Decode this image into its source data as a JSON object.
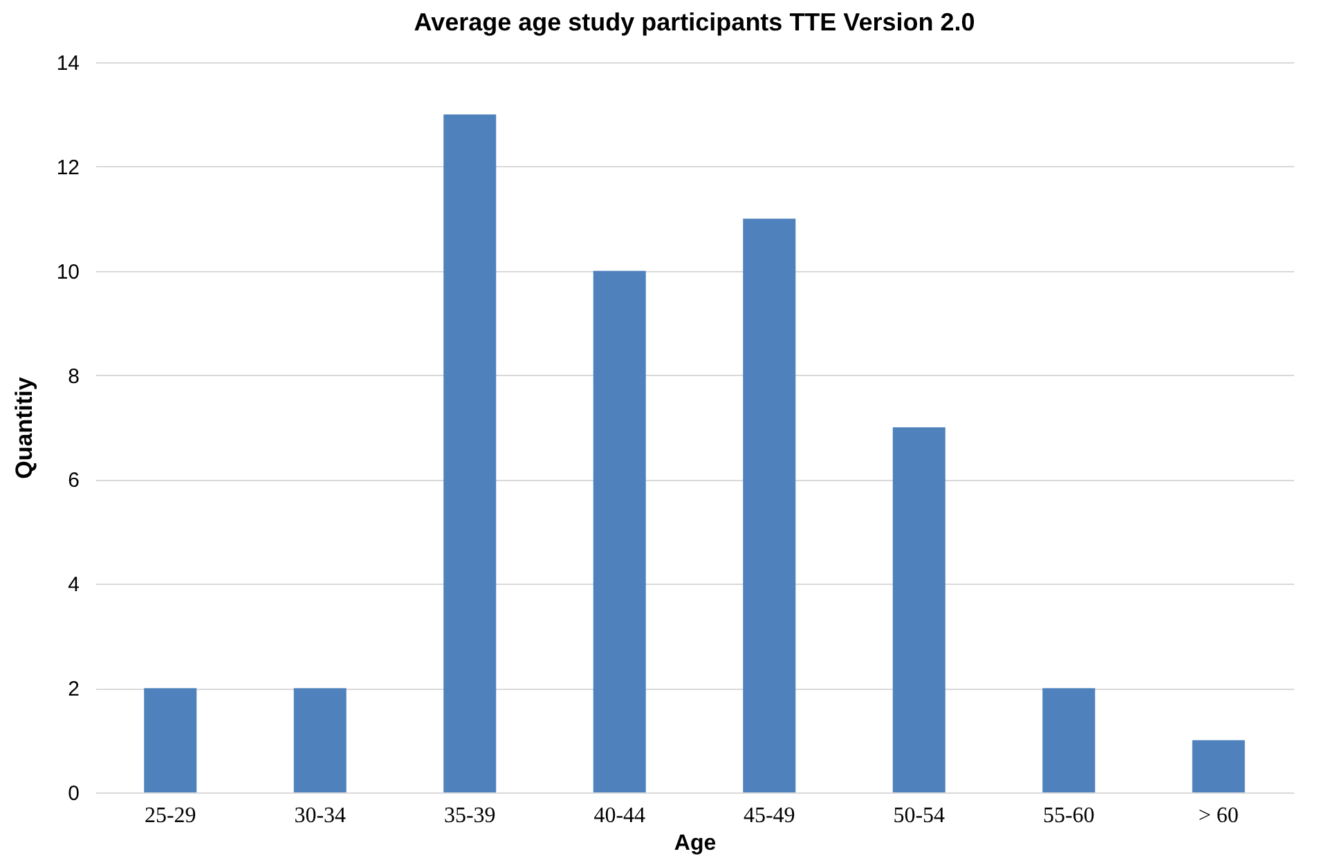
{
  "chart_data": {
    "type": "bar",
    "title": "Average age study participants TTE Version 2.0",
    "xlabel": "Age",
    "ylabel": "Quantitiy",
    "categories": [
      "25-29",
      "30-34",
      "35-39",
      "40-44",
      "45-49",
      "50-54",
      "55-60",
      "> 60"
    ],
    "values": [
      2,
      2,
      13,
      10,
      11,
      7,
      2,
      1
    ],
    "color": "#4f81bd",
    "ylim": [
      0,
      14
    ],
    "yticks": [
      0,
      2,
      4,
      6,
      8,
      10,
      12,
      14
    ],
    "grid": "y"
  }
}
